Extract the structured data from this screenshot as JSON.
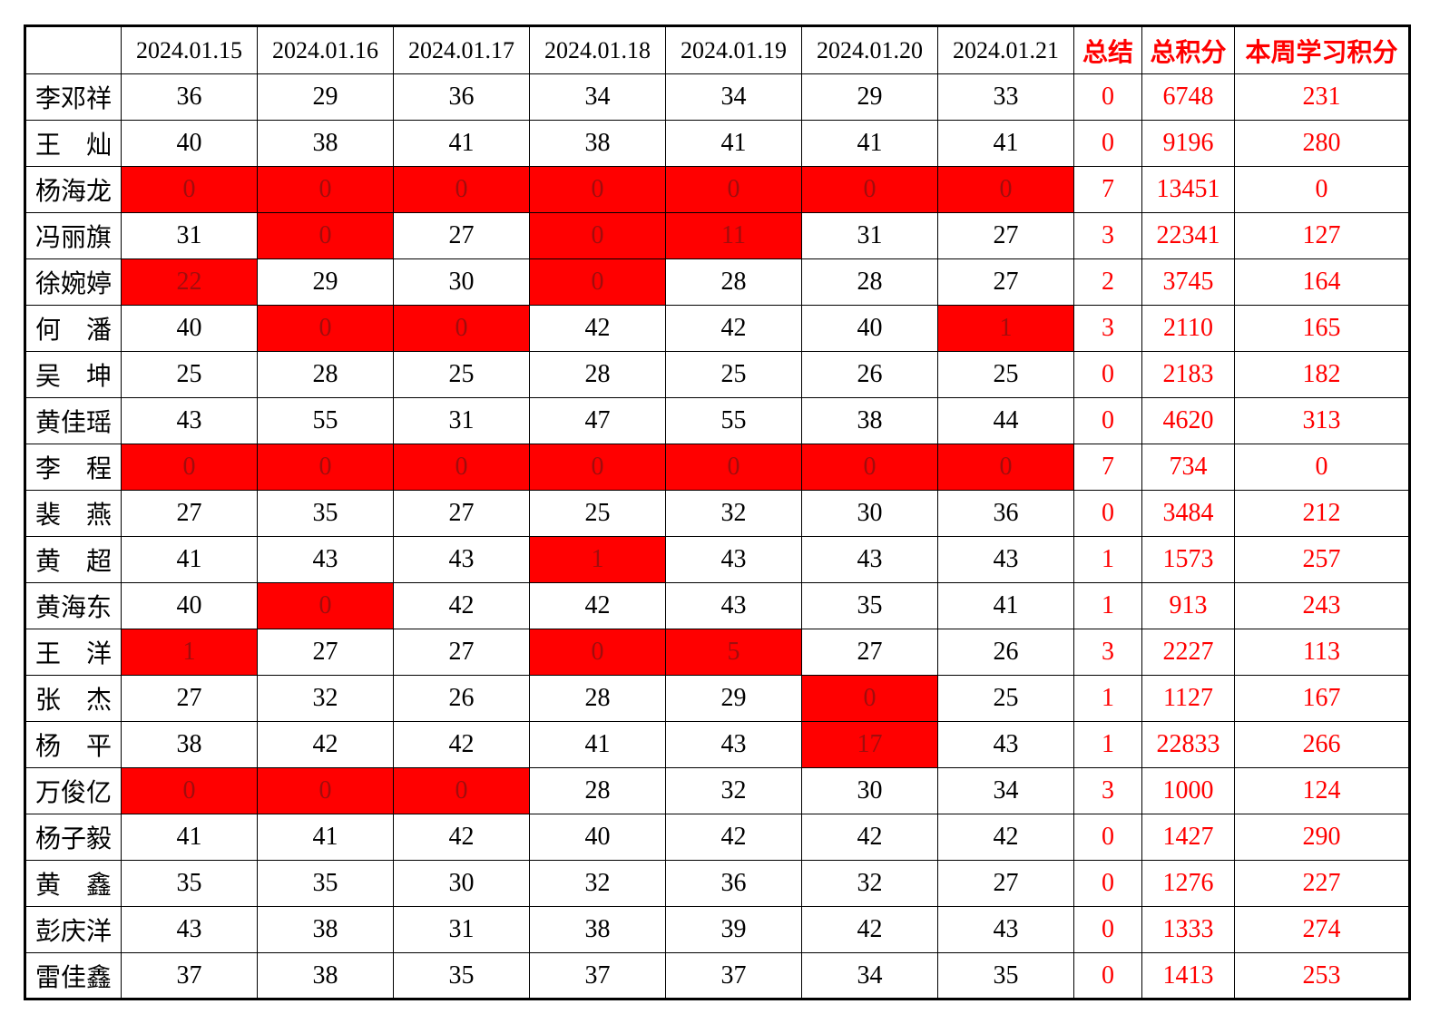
{
  "table": {
    "header": {
      "corner": "",
      "dates": [
        "2024.01.15",
        "2024.01.16",
        "2024.01.17",
        "2024.01.18",
        "2024.01.19",
        "2024.01.20",
        "2024.01.21"
      ],
      "summary_label": "总结",
      "total_label": "总积分",
      "week_label": "本周学习积分"
    },
    "rows": [
      {
        "name": "李邓祥",
        "days": [
          "36",
          "29",
          "36",
          "34",
          "34",
          "29",
          "33"
        ],
        "red": [],
        "summary": "0",
        "total": "6748",
        "week": "231"
      },
      {
        "name": "王　灿",
        "days": [
          "40",
          "38",
          "41",
          "38",
          "41",
          "41",
          "41"
        ],
        "red": [],
        "summary": "0",
        "total": "9196",
        "week": "280"
      },
      {
        "name": "杨海龙",
        "days": [
          "0",
          "0",
          "0",
          "0",
          "0",
          "0",
          "0"
        ],
        "red": [
          0,
          1,
          2,
          3,
          4,
          5,
          6
        ],
        "summary": "7",
        "total": "13451",
        "week": "0"
      },
      {
        "name": "冯丽旗",
        "days": [
          "31",
          "0",
          "27",
          "0",
          "11",
          "31",
          "27"
        ],
        "red": [
          1,
          3,
          4
        ],
        "summary": "3",
        "total": "22341",
        "week": "127"
      },
      {
        "name": "徐婉婷",
        "days": [
          "22",
          "29",
          "30",
          "0",
          "28",
          "28",
          "27"
        ],
        "red": [
          0,
          3
        ],
        "summary": "2",
        "total": "3745",
        "week": "164"
      },
      {
        "name": "何　潘",
        "days": [
          "40",
          "0",
          "0",
          "42",
          "42",
          "40",
          "1"
        ],
        "red": [
          1,
          2,
          6
        ],
        "summary": "3",
        "total": "2110",
        "week": "165"
      },
      {
        "name": "吴　坤",
        "days": [
          "25",
          "28",
          "25",
          "28",
          "25",
          "26",
          "25"
        ],
        "red": [],
        "summary": "0",
        "total": "2183",
        "week": "182"
      },
      {
        "name": "黄佳瑶",
        "days": [
          "43",
          "55",
          "31",
          "47",
          "55",
          "38",
          "44"
        ],
        "red": [],
        "summary": "0",
        "total": "4620",
        "week": "313"
      },
      {
        "name": "李　程",
        "days": [
          "0",
          "0",
          "0",
          "0",
          "0",
          "0",
          "0"
        ],
        "red": [
          0,
          1,
          2,
          3,
          4,
          5,
          6
        ],
        "summary": "7",
        "total": "734",
        "week": "0"
      },
      {
        "name": "裴　燕",
        "days": [
          "27",
          "35",
          "27",
          "25",
          "32",
          "30",
          "36"
        ],
        "red": [],
        "summary": "0",
        "total": "3484",
        "week": "212"
      },
      {
        "name": "黄　超",
        "days": [
          "41",
          "43",
          "43",
          "1",
          "43",
          "43",
          "43"
        ],
        "red": [
          3
        ],
        "summary": "1",
        "total": "1573",
        "week": "257"
      },
      {
        "name": "黄海东",
        "days": [
          "40",
          "0",
          "42",
          "42",
          "43",
          "35",
          "41"
        ],
        "red": [
          1
        ],
        "summary": "1",
        "total": "913",
        "week": "243"
      },
      {
        "name": "王　洋",
        "days": [
          "1",
          "27",
          "27",
          "0",
          "5",
          "27",
          "26"
        ],
        "red": [
          0,
          3,
          4
        ],
        "summary": "3",
        "total": "2227",
        "week": "113"
      },
      {
        "name": "张　杰",
        "days": [
          "27",
          "32",
          "26",
          "28",
          "29",
          "0",
          "25"
        ],
        "red": [
          5
        ],
        "summary": "1",
        "total": "1127",
        "week": "167"
      },
      {
        "name": "杨　平",
        "days": [
          "38",
          "42",
          "42",
          "41",
          "43",
          "17",
          "43"
        ],
        "red": [
          5
        ],
        "summary": "1",
        "total": "22833",
        "week": "266"
      },
      {
        "name": "万俊亿",
        "days": [
          "0",
          "0",
          "0",
          "28",
          "32",
          "30",
          "34"
        ],
        "red": [
          0,
          1,
          2
        ],
        "summary": "3",
        "total": "1000",
        "week": "124"
      },
      {
        "name": "杨子毅",
        "days": [
          "41",
          "41",
          "42",
          "40",
          "42",
          "42",
          "42"
        ],
        "red": [],
        "summary": "0",
        "total": "1427",
        "week": "290"
      },
      {
        "name": "黄　鑫",
        "days": [
          "35",
          "35",
          "30",
          "32",
          "36",
          "32",
          "27"
        ],
        "red": [],
        "summary": "0",
        "total": "1276",
        "week": "227"
      },
      {
        "name": "彭庆洋",
        "days": [
          "43",
          "38",
          "31",
          "38",
          "39",
          "42",
          "43"
        ],
        "red": [],
        "summary": "0",
        "total": "1333",
        "week": "274"
      },
      {
        "name": "雷佳鑫",
        "days": [
          "37",
          "38",
          "35",
          "37",
          "37",
          "34",
          "35"
        ],
        "red": [],
        "summary": "0",
        "total": "1413",
        "week": "253"
      }
    ]
  },
  "colors": {
    "highlight_bg": "#FF0000",
    "highlight_text": "#A00D0D",
    "accent_text": "#FF0000"
  }
}
